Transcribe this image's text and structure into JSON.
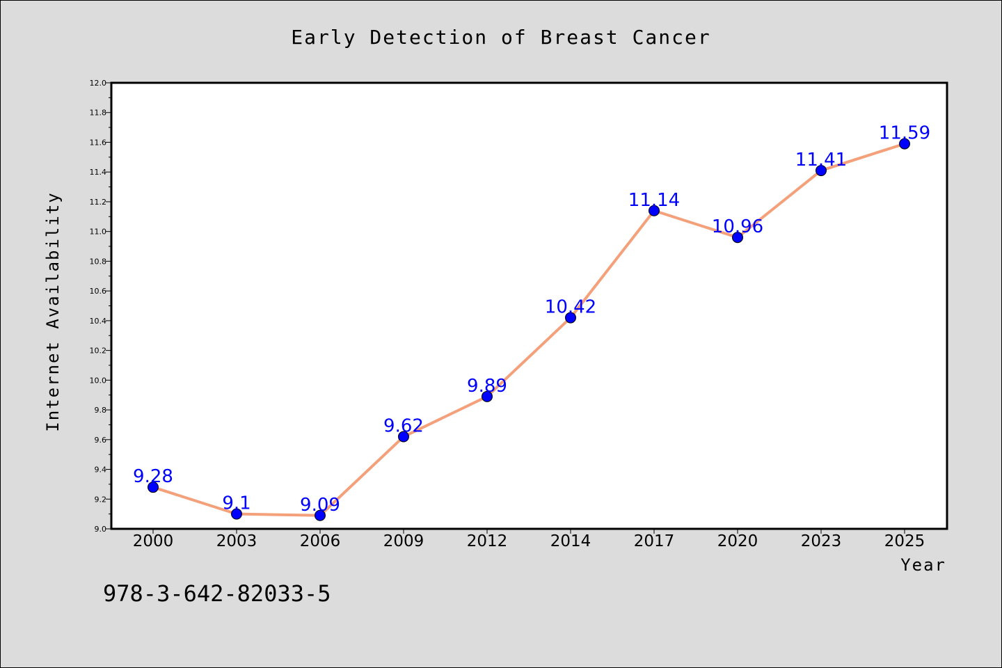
{
  "chart_data": {
    "type": "line",
    "title": "Early Detection of Breast Cancer",
    "xlabel": "Year",
    "ylabel": "Internet Availability",
    "categories": [
      "2000",
      "2003",
      "2006",
      "2009",
      "2012",
      "2014",
      "2017",
      "2020",
      "2023",
      "2025"
    ],
    "series": [
      {
        "values": [
          9.28,
          9.1,
          9.09,
          9.62,
          9.89,
          10.42,
          11.14,
          10.96,
          11.41,
          11.59
        ],
        "data_labels": [
          "9.28",
          "9.1",
          "9.09",
          "9.62",
          "9.89",
          "10.42",
          "11.14",
          "10.96",
          "11.41",
          "11.59"
        ],
        "line_color": "#f4a07a",
        "marker_color": "#0000ff"
      }
    ],
    "ylim": [
      9.0,
      12.0
    ],
    "yticks": [
      "9.0",
      "9.2",
      "9.4",
      "9.6",
      "9.8",
      "10.0",
      "10.2",
      "10.4",
      "10.6",
      "10.8",
      "11.0",
      "11.2",
      "11.4",
      "11.6",
      "11.8",
      "12.0"
    ],
    "grid": false,
    "legend": "none"
  },
  "footer_text": "978-3-642-82033-5",
  "colors": {
    "background": "#dcdcdc",
    "plot_area": "#ffffff",
    "data_label": "#0000ff"
  }
}
